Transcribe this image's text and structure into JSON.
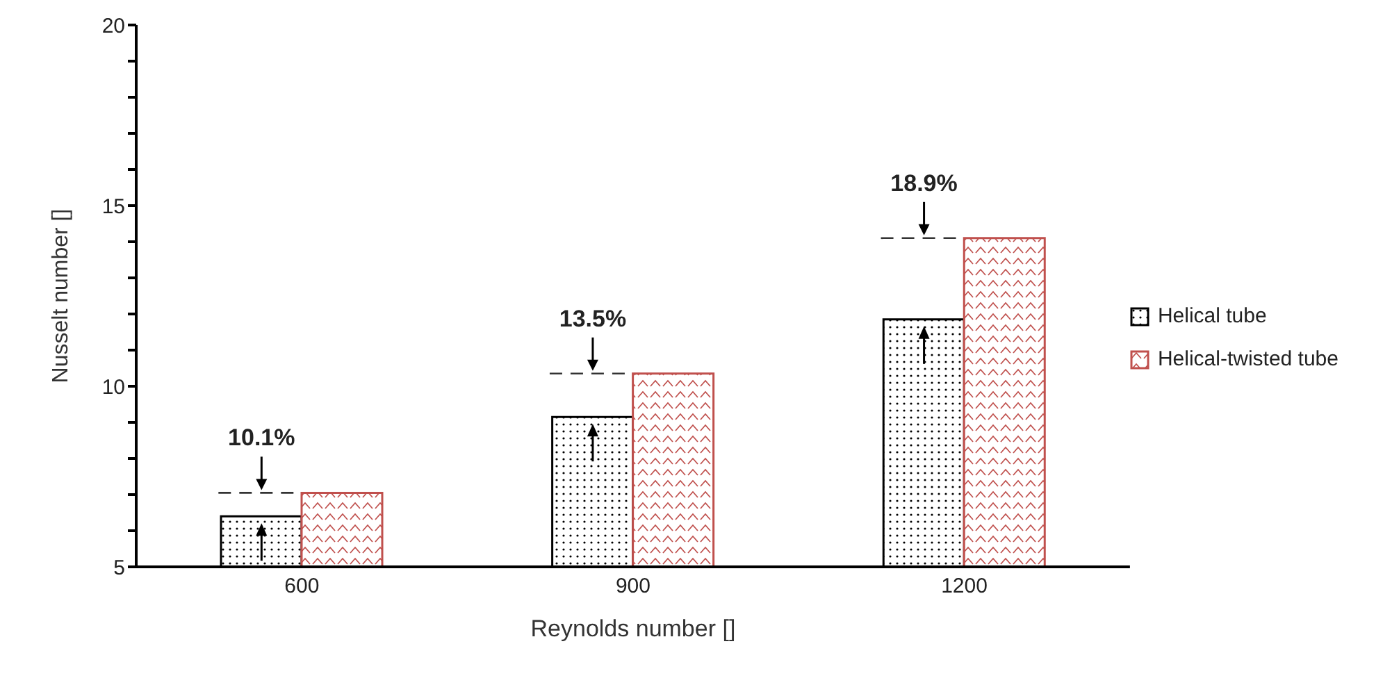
{
  "chart_data": {
    "type": "bar",
    "xlabel": "Reynolds number []",
    "ylabel": "Nusselt number []",
    "categories": [
      "600",
      "900",
      "1200"
    ],
    "series": [
      {
        "name": "Helical tube",
        "color": "#000000",
        "values": [
          6.4,
          9.15,
          11.85
        ]
      },
      {
        "name": "Helical-twisted tube",
        "color": "#c0504d",
        "values": [
          7.05,
          10.35,
          14.1
        ]
      }
    ],
    "ylim": [
      5,
      20
    ],
    "yticks": [
      5,
      {
        "value": 6,
        "label": null
      },
      {
        "value": 7,
        "label": null
      },
      {
        "value": 8,
        "label": null
      },
      {
        "value": 9,
        "label": null
      },
      10,
      {
        "value": 11,
        "label": null
      },
      {
        "value": 12,
        "label": null
      },
      {
        "value": 13,
        "label": null
      },
      {
        "value": 14,
        "label": null
      },
      15,
      {
        "value": 16,
        "label": null
      },
      {
        "value": 17,
        "label": null
      },
      {
        "value": 18,
        "label": null
      },
      {
        "value": 19,
        "label": null
      },
      20
    ],
    "annotations": [
      {
        "text": "10.1%",
        "x": "600",
        "y": 7.05
      },
      {
        "text": "13.5%",
        "x": "900",
        "y": 10.35
      },
      {
        "text": "18.9%",
        "x": "1200",
        "y": 14.1
      }
    ],
    "legend": "right"
  }
}
